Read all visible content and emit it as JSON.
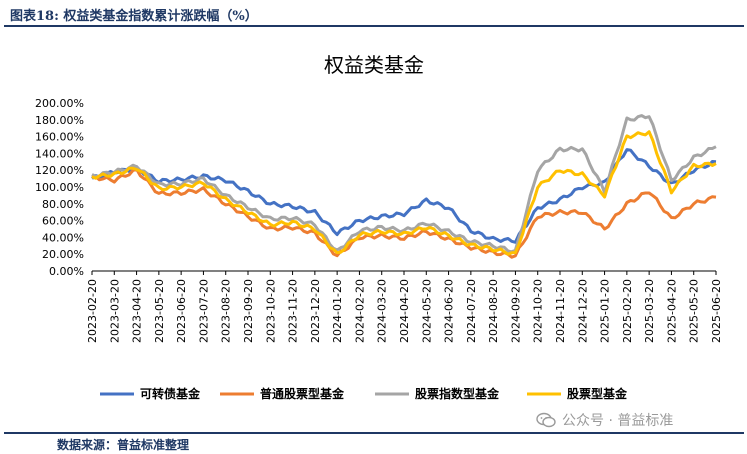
{
  "header": {
    "figure_label": "图表18:",
    "figure_title": "权益类基金指数累计涨跌幅（%）"
  },
  "footer": {
    "source": "数据来源：普益标准整理"
  },
  "watermark": {
    "text": "公众号 · 普益标准",
    "icon": "wechat-icon"
  },
  "chart_data": {
    "type": "line",
    "title": "权益类基金",
    "xlabel": "",
    "ylabel": "",
    "ylim": [
      0,
      200
    ],
    "yticks": [
      "0.00%",
      "20.00%",
      "40.00%",
      "60.00%",
      "80.00%",
      "100.00%",
      "120.00%",
      "140.00%",
      "160.00%",
      "180.00%",
      "200.00%"
    ],
    "x": [
      "2023-02-20",
      "2023-03-20",
      "2023-04-20",
      "2023-05-20",
      "2023-06-20",
      "2023-07-20",
      "2023-08-20",
      "2023-09-20",
      "2023-10-20",
      "2023-11-20",
      "2023-12-20",
      "2024-01-20",
      "2024-02-20",
      "2024-03-20",
      "2024-04-20",
      "2024-05-20",
      "2024-06-20",
      "2024-07-20",
      "2024-08-20",
      "2024-09-20",
      "2024-10-20",
      "2024-11-20",
      "2024-12-20",
      "2025-01-20",
      "2025-02-20",
      "2025-03-20",
      "2025-04-20",
      "2025-05-20",
      "2025-06-20"
    ],
    "legend_position": "bottom",
    "grid": false,
    "series": [
      {
        "name": "可转债基金",
        "color": "#4472c4",
        "values": [
          110,
          118,
          122,
          107,
          109,
          113,
          108,
          95,
          80,
          77,
          70,
          45,
          60,
          65,
          68,
          84,
          75,
          48,
          38,
          36,
          75,
          85,
          100,
          105,
          145,
          125,
          103,
          120,
          130
        ]
      },
      {
        "name": "普通股票型基金",
        "color": "#ed7d31",
        "values": [
          112,
          108,
          120,
          92,
          93,
          97,
          80,
          65,
          50,
          52,
          45,
          18,
          40,
          42,
          39,
          47,
          38,
          28,
          22,
          18,
          65,
          70,
          70,
          50,
          80,
          95,
          62,
          80,
          88
        ]
      },
      {
        "name": "股票指数型基金",
        "color": "#a5a5a5",
        "values": [
          113,
          118,
          125,
          103,
          104,
          110,
          90,
          76,
          62,
          63,
          55,
          23,
          48,
          52,
          48,
          57,
          47,
          35,
          30,
          23,
          120,
          145,
          145,
          95,
          180,
          185,
          108,
          135,
          148
        ]
      },
      {
        "name": "股票型基金",
        "color": "#ffc000",
        "values": [
          112,
          115,
          123,
          98,
          100,
          105,
          85,
          70,
          55,
          58,
          50,
          20,
          43,
          47,
          44,
          52,
          42,
          31,
          26,
          20,
          100,
          120,
          115,
          90,
          160,
          165,
          95,
          125,
          128
        ]
      }
    ]
  }
}
